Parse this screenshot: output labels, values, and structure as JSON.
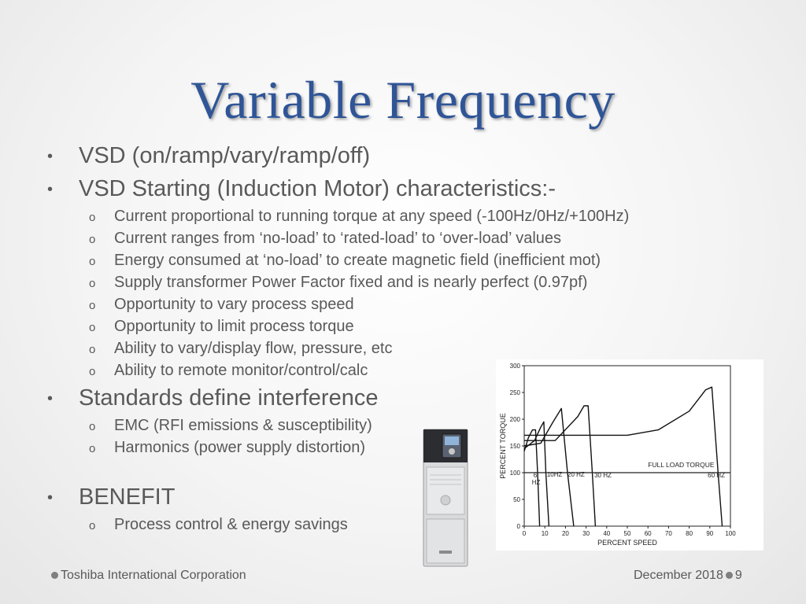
{
  "slide": {
    "title": "Variable Frequency",
    "bullets": [
      {
        "text": "VSD (on/ramp/vary/ramp/off)"
      },
      {
        "text": "VSD Starting (Induction Motor) characteristics:-",
        "sub": [
          "Current proportional to running torque at any speed (-100Hz/0Hz/+100Hz)",
          "Current ranges from ‘no-load’ to ‘rated-load’ to ‘over-load’ values",
          "Energy consumed at ‘no-load’ to create magnetic field (inefficient mot)",
          "Supply transformer Power Factor fixed and is nearly perfect (0.97pf)",
          "Opportunity to vary process speed",
          "Opportunity to limit process torque",
          "Ability to vary/display flow, pressure, etc",
          "Ability to remote monitor/control/calc"
        ]
      },
      {
        "text": "Standards define interference",
        "sub": [
          "EMC (RFI emissions & susceptibility)",
          "Harmonics (power supply distortion)"
        ]
      },
      {
        "text": "BENEFIT",
        "sub": [
          "Process control & energy savings"
        ]
      }
    ],
    "bullet_symbol": "•",
    "sub_bullet_symbol": "o",
    "footer": {
      "left": "Toshiba International Corporation",
      "date": "December  2018",
      "page": "9"
    },
    "colors": {
      "title": "#2f5597",
      "text": "#595959"
    }
  },
  "chart_data": {
    "type": "line",
    "xlabel": "PERCENT SPEED",
    "ylabel": "PERCENT TORQUE",
    "xlim": [
      0,
      100
    ],
    "ylim": [
      0,
      300
    ],
    "xticks": [
      0,
      10,
      20,
      30,
      40,
      50,
      60,
      70,
      80,
      90,
      100
    ],
    "yticks": [
      0,
      50,
      100,
      150,
      200,
      250,
      300
    ],
    "annotations": [
      "FULL LOAD TORQUE",
      "6 HZ",
      "10HZ",
      "20 HZ",
      "30 HZ",
      "60 HZ"
    ],
    "full_load_torque": 100,
    "series": [
      {
        "x": [
          0,
          2,
          4,
          5.5,
          6.5,
          7.5
        ],
        "y": [
          140,
          165,
          180,
          180,
          100,
          0
        ]
      },
      {
        "x": [
          0,
          5,
          8,
          9.5,
          10.5,
          12
        ],
        "y": [
          145,
          160,
          185,
          195,
          100,
          0
        ]
      },
      {
        "x": [
          0,
          8,
          14,
          18,
          21,
          24
        ],
        "y": [
          150,
          155,
          195,
          220,
          100,
          0
        ]
      },
      {
        "x": [
          0,
          15,
          26,
          29,
          31,
          33,
          34.5
        ],
        "y": [
          160,
          160,
          205,
          225,
          225,
          100,
          0
        ]
      },
      {
        "x": [
          0,
          50,
          65,
          80,
          88,
          91,
          94,
          96
        ],
        "y": [
          170,
          170,
          180,
          215,
          255,
          260,
          100,
          0
        ]
      }
    ]
  }
}
